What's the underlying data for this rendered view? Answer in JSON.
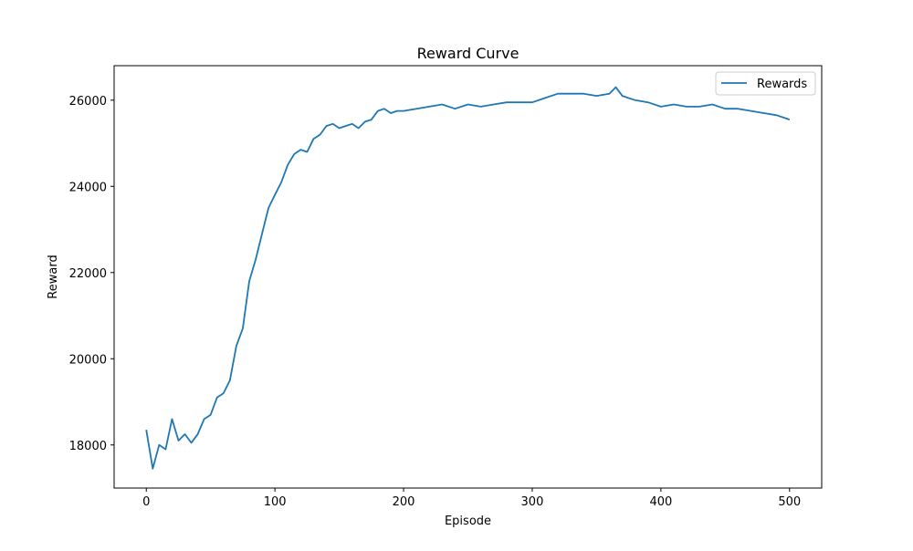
{
  "chart_data": {
    "type": "line",
    "title": "Reward Curve",
    "xlabel": "Episode",
    "ylabel": "Reward",
    "xlim": [
      -25,
      525
    ],
    "ylim": [
      17000,
      26800
    ],
    "xticks": [
      0,
      100,
      200,
      300,
      400,
      500
    ],
    "yticks": [
      18000,
      20000,
      22000,
      24000,
      26000
    ],
    "legend_position": "top-right",
    "series": [
      {
        "name": "Rewards",
        "color": "#1f77b4",
        "x": [
          0,
          5,
          10,
          15,
          20,
          25,
          30,
          35,
          40,
          45,
          50,
          55,
          60,
          65,
          70,
          75,
          80,
          85,
          90,
          95,
          100,
          105,
          110,
          115,
          120,
          125,
          130,
          135,
          140,
          145,
          150,
          155,
          160,
          165,
          170,
          175,
          180,
          185,
          190,
          195,
          200,
          210,
          220,
          230,
          240,
          250,
          260,
          270,
          280,
          290,
          300,
          310,
          320,
          330,
          340,
          350,
          360,
          365,
          370,
          380,
          390,
          400,
          410,
          420,
          430,
          440,
          450,
          460,
          470,
          480,
          490,
          500
        ],
        "y": [
          18350,
          17450,
          18000,
          17900,
          18600,
          18100,
          18250,
          18050,
          18250,
          18600,
          18700,
          19100,
          19200,
          19500,
          20300,
          20700,
          21800,
          22300,
          22900,
          23500,
          23800,
          24100,
          24500,
          24750,
          24850,
          24800,
          25100,
          25200,
          25400,
          25450,
          25350,
          25400,
          25450,
          25350,
          25500,
          25550,
          25750,
          25800,
          25700,
          25750,
          25750,
          25800,
          25850,
          25900,
          25800,
          25900,
          25850,
          25900,
          25950,
          25950,
          25950,
          26050,
          26150,
          26150,
          26150,
          26100,
          26150,
          26300,
          26100,
          26000,
          25950,
          25850,
          25900,
          25850,
          25850,
          25900,
          25800,
          25800,
          25750,
          25700,
          25650,
          25550
        ]
      }
    ]
  }
}
